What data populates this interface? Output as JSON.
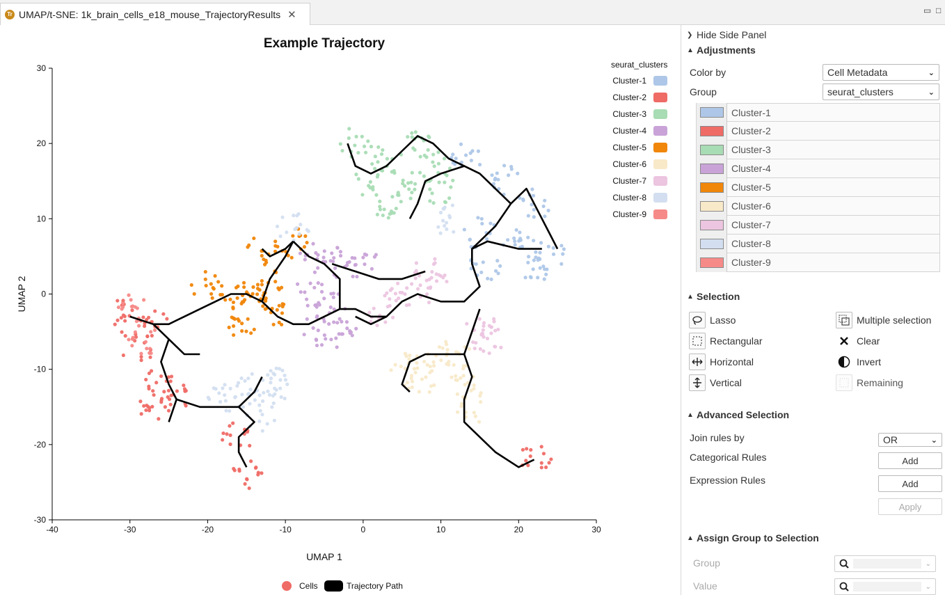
{
  "tab": {
    "title": "UMAP/t-SNE: 1k_brain_cells_e18_mouse_TrajectoryResults",
    "close": "✕",
    "icon_letter": "Tr"
  },
  "window": {
    "minimize": "▭",
    "maximize": "□"
  },
  "side_panel": {
    "hide_label": "Hide Side Panel",
    "adjustments": {
      "title": "Adjustments",
      "color_by_label": "Color by",
      "color_by_value": "Cell Metadata",
      "group_label": "Group",
      "group_value": "seurat_clusters",
      "groups": [
        {
          "name": "Cluster-1",
          "color": "#aec7e8"
        },
        {
          "name": "Cluster-2",
          "color": "#ef6b66"
        },
        {
          "name": "Cluster-3",
          "color": "#a8dcb4"
        },
        {
          "name": "Cluster-4",
          "color": "#c9a3d8"
        },
        {
          "name": "Cluster-5",
          "color": "#f0860a"
        },
        {
          "name": "Cluster-6",
          "color": "#f8e9c8"
        },
        {
          "name": "Cluster-7",
          "color": "#ecc5e0"
        },
        {
          "name": "Cluster-8",
          "color": "#d3dff0"
        },
        {
          "name": "Cluster-9",
          "color": "#f58a88"
        }
      ]
    },
    "selection": {
      "title": "Selection",
      "items": {
        "lasso": "Lasso",
        "multiple": "Multiple selection",
        "rectangular": "Rectangular",
        "clear": "Clear",
        "horizontal": "Horizontal",
        "invert": "Invert",
        "vertical": "Vertical",
        "remaining": "Remaining"
      }
    },
    "advanced": {
      "title": "Advanced Selection",
      "join_label": "Join rules by",
      "join_value": "OR",
      "categorical_label": "Categorical Rules",
      "expression_label": "Expression Rules",
      "add": "Add",
      "apply": "Apply"
    },
    "assign": {
      "title": "Assign Group to Selection",
      "group_label": "Group",
      "value_label": "Value"
    }
  },
  "chart_data": {
    "type": "scatter",
    "title": "Example Trajectory",
    "xlabel": "UMAP 1",
    "ylabel": "UMAP 2",
    "xlim": [
      -40,
      30
    ],
    "ylim": [
      -30,
      30
    ],
    "xticks": [
      -40,
      -30,
      -20,
      -10,
      0,
      10,
      20,
      30
    ],
    "yticks": [
      -30,
      -20,
      -10,
      0,
      10,
      20,
      30
    ],
    "legend_title": "seurat_clusters",
    "legend_position": "top-right",
    "bottom_legend": {
      "cells": "Cells",
      "path": "Trajectory Path"
    },
    "series": [
      {
        "name": "Cluster-1",
        "color": "#aec7e8",
        "centers": [
          [
            13,
            18
          ],
          [
            18,
            15
          ],
          [
            22,
            12
          ],
          [
            15,
            8
          ],
          [
            20,
            7
          ],
          [
            24,
            5
          ],
          [
            16,
            4
          ],
          [
            22,
            3
          ]
        ]
      },
      {
        "name": "Cluster-2",
        "color": "#ef6b66",
        "centers": [
          [
            -27,
            -4
          ],
          [
            -29,
            -7
          ],
          [
            -26,
            -12
          ],
          [
            -27,
            -15
          ],
          [
            -24,
            -13
          ],
          [
            -16,
            -19
          ],
          [
            -15,
            -24
          ],
          [
            22,
            -22
          ],
          [
            -31,
            -3
          ]
        ]
      },
      {
        "name": "Cluster-3",
        "color": "#a8dcb4",
        "centers": [
          [
            -1,
            20
          ],
          [
            3,
            18
          ],
          [
            7,
            20
          ],
          [
            9,
            17
          ],
          [
            1,
            15
          ],
          [
            6,
            14
          ],
          [
            10,
            14
          ],
          [
            3,
            12
          ]
        ]
      },
      {
        "name": "Cluster-4",
        "color": "#c9a3d8",
        "centers": [
          [
            -6,
            5
          ],
          [
            -3,
            4
          ],
          [
            0,
            4
          ],
          [
            -7,
            0
          ],
          [
            -4,
            -2
          ],
          [
            -3,
            -5
          ],
          [
            -6,
            -5
          ]
        ]
      },
      {
        "name": "Cluster-5",
        "color": "#f0860a",
        "centers": [
          [
            -20,
            1
          ],
          [
            -17,
            0
          ],
          [
            -14,
            0
          ],
          [
            -12,
            1
          ],
          [
            -11,
            -2
          ],
          [
            -13,
            6
          ],
          [
            -9,
            7
          ],
          [
            -16,
            -5
          ]
        ]
      },
      {
        "name": "Cluster-6",
        "color": "#f8e9c8",
        "centers": [
          [
            5,
            -9
          ],
          [
            9,
            -9
          ],
          [
            12,
            -8
          ],
          [
            13,
            -12
          ],
          [
            14,
            -15
          ],
          [
            7,
            -12
          ]
        ]
      },
      {
        "name": "Cluster-7",
        "color": "#ecc5e0",
        "centers": [
          [
            8,
            3
          ],
          [
            9,
            1
          ],
          [
            5,
            0
          ],
          [
            15,
            -4
          ],
          [
            16,
            -6
          ],
          [
            2,
            -2
          ]
        ]
      },
      {
        "name": "Cluster-8",
        "color": "#d3dff0",
        "centers": [
          [
            -18,
            -14
          ],
          [
            -15,
            -13
          ],
          [
            -13,
            -12
          ],
          [
            -13,
            -16
          ],
          [
            -11,
            -12
          ],
          [
            -9,
            9
          ],
          [
            11,
            10
          ]
        ]
      },
      {
        "name": "Cluster-9",
        "color": "#f58a88",
        "centers": [
          [
            -30,
            -2
          ],
          [
            -28,
            -6
          ]
        ]
      }
    ],
    "trajectory": [
      [
        [
          -30,
          -3
        ],
        [
          -27,
          -4
        ],
        [
          -25,
          -6
        ],
        [
          -23,
          -8
        ],
        [
          -21,
          -8
        ]
      ],
      [
        [
          -27,
          -4
        ],
        [
          -25,
          -4
        ],
        [
          -23,
          -3
        ],
        [
          -21,
          -2
        ]
      ],
      [
        [
          -25,
          -6
        ],
        [
          -26,
          -9
        ],
        [
          -25,
          -12
        ],
        [
          -24,
          -14
        ],
        [
          -25,
          -17
        ]
      ],
      [
        [
          -24,
          -14
        ],
        [
          -21,
          -15
        ],
        [
          -18,
          -15
        ],
        [
          -16,
          -15
        ],
        [
          -14,
          -17
        ],
        [
          -16,
          -19
        ],
        [
          -16,
          -21
        ],
        [
          -15,
          -23
        ]
      ],
      [
        [
          -16,
          -15
        ],
        [
          -14,
          -13
        ],
        [
          -13,
          -11
        ]
      ],
      [
        [
          -21,
          -2
        ],
        [
          -19,
          -1
        ],
        [
          -17,
          0
        ],
        [
          -15,
          0
        ],
        [
          -13,
          -1
        ],
        [
          -11,
          -3
        ],
        [
          -9,
          -4
        ],
        [
          -7,
          -4
        ],
        [
          -5,
          -3
        ],
        [
          -3,
          -2
        ],
        [
          -1,
          -2
        ],
        [
          1,
          -3
        ],
        [
          3,
          -3
        ],
        [
          5,
          -1
        ],
        [
          7,
          0
        ],
        [
          10,
          -1
        ],
        [
          13,
          -1
        ],
        [
          15,
          1
        ],
        [
          14,
          4
        ],
        [
          14,
          6
        ],
        [
          16,
          7
        ],
        [
          20,
          6
        ],
        [
          23,
          6
        ]
      ],
      [
        [
          -13,
          -1
        ],
        [
          -12,
          2
        ],
        [
          -10,
          5
        ],
        [
          -9,
          7
        ]
      ],
      [
        [
          -9,
          7
        ],
        [
          -7,
          5
        ],
        [
          -5,
          4
        ],
        [
          -3,
          2
        ],
        [
          -3,
          -2
        ]
      ],
      [
        [
          -4,
          4
        ],
        [
          -1,
          3
        ],
        [
          2,
          2
        ],
        [
          5,
          2
        ],
        [
          8,
          3
        ]
      ],
      [
        [
          14,
          6
        ],
        [
          17,
          9
        ],
        [
          19,
          12
        ],
        [
          21,
          14
        ],
        [
          22,
          12
        ],
        [
          24,
          8
        ],
        [
          25,
          6
        ]
      ],
      [
        [
          19,
          12
        ],
        [
          17,
          14
        ],
        [
          15,
          16
        ],
        [
          13,
          17
        ],
        [
          10,
          16
        ],
        [
          8,
          15
        ],
        [
          7,
          12
        ],
        [
          6,
          10
        ]
      ],
      [
        [
          13,
          17
        ],
        [
          11,
          18
        ],
        [
          9,
          20
        ],
        [
          7,
          21
        ],
        [
          5,
          19
        ],
        [
          3,
          17
        ],
        [
          1,
          16
        ],
        [
          -1,
          17
        ],
        [
          -2,
          20
        ]
      ],
      [
        [
          15,
          -2
        ],
        [
          14,
          -5
        ],
        [
          13,
          -8
        ],
        [
          11,
          -8
        ],
        [
          8,
          -8
        ],
        [
          6,
          -9
        ],
        [
          5,
          -12
        ],
        [
          6,
          -13
        ]
      ],
      [
        [
          13,
          -8
        ],
        [
          14,
          -11
        ],
        [
          13,
          -14
        ],
        [
          13,
          -17
        ],
        [
          17,
          -21
        ],
        [
          20,
          -23
        ],
        [
          22,
          -22
        ]
      ],
      [
        [
          3,
          -3
        ],
        [
          1,
          -4
        ],
        [
          -1,
          -3
        ]
      ],
      [
        [
          -9,
          7
        ],
        [
          -10,
          6
        ],
        [
          -12,
          5
        ],
        [
          -13,
          6
        ]
      ]
    ]
  }
}
